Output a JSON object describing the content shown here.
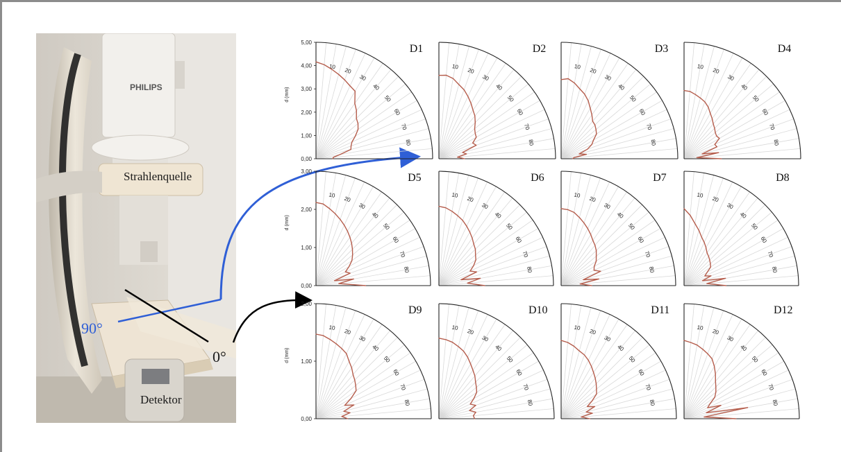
{
  "photo": {
    "brand_text": "PHILIPS",
    "source_label": "Strahlenquelle",
    "detector_label": "Detektor",
    "angle_90_label": "90°",
    "angle_0_label": "0°",
    "colors": {
      "blue": "#2f5fd6",
      "black": "#000000",
      "curve": "#b55d4c"
    }
  },
  "chart_data": [
    {
      "type": "line",
      "title": "D1",
      "ylabel": "d (mm)",
      "ylim": [
        0,
        5
      ],
      "yticks": [
        "0,00",
        "1,00",
        "2,00",
        "3,00",
        "4,00",
        "5,00"
      ],
      "angle_ticks": [
        "10",
        "20",
        "30",
        "40",
        "50",
        "60",
        "70",
        "80"
      ],
      "x": [
        0,
        5,
        10,
        15,
        20,
        25,
        30,
        35,
        40,
        45,
        50,
        55,
        60,
        65,
        70,
        75,
        80,
        85,
        90
      ],
      "y": [
        4.16,
        4.05,
        3.9,
        3.75,
        3.6,
        3.45,
        3.35,
        2.9,
        2.7,
        2.45,
        2.35,
        2.2,
        1.95,
        1.7,
        1.6,
        1.55,
        1.05,
        0.75,
        0.72
      ]
    },
    {
      "type": "line",
      "title": "D2",
      "ylim": [
        0,
        5
      ],
      "angle_ticks": [
        "10",
        "20",
        "30",
        "40",
        "50",
        "60",
        "70",
        "80"
      ],
      "x": [
        0,
        5,
        10,
        15,
        20,
        25,
        30,
        35,
        40,
        45,
        50,
        55,
        60,
        65,
        70,
        75,
        80,
        85,
        90
      ],
      "y": [
        3.58,
        3.6,
        3.5,
        3.3,
        3.15,
        2.95,
        2.75,
        2.55,
        2.4,
        2.2,
        2.0,
        1.9,
        1.85,
        1.6,
        1.7,
        1.05,
        1.2,
        0.8,
        1.1
      ]
    },
    {
      "type": "line",
      "title": "D3",
      "ylim": [
        0,
        5
      ],
      "angle_ticks": [
        "10",
        "20",
        "30",
        "40",
        "50",
        "60",
        "70",
        "80"
      ],
      "x": [
        0,
        5,
        10,
        15,
        20,
        25,
        30,
        35,
        40,
        45,
        50,
        55,
        60,
        65,
        70,
        75,
        80,
        85,
        90
      ],
      "y": [
        3.4,
        3.45,
        3.3,
        3.1,
        2.95,
        2.75,
        2.5,
        2.3,
        2.1,
        2.05,
        1.95,
        1.85,
        1.6,
        1.45,
        1.2,
        0.8,
        1.1,
        0.55,
        0.5
      ]
    },
    {
      "type": "line",
      "title": "D4",
      "ylim": [
        0,
        5
      ],
      "angle_ticks": [
        "10",
        "20",
        "30",
        "40",
        "50",
        "60",
        "70",
        "80"
      ],
      "x": [
        0,
        5,
        10,
        15,
        20,
        25,
        30,
        35,
        40,
        45,
        50,
        55,
        60,
        65,
        70,
        75,
        80,
        85,
        90
      ],
      "y": [
        2.93,
        2.9,
        2.8,
        2.7,
        2.6,
        2.45,
        2.25,
        2.1,
        1.95,
        1.85,
        1.75,
        1.7,
        1.75,
        1.45,
        1.5,
        0.8,
        1.5,
        0.55,
        1.6
      ]
    },
    {
      "type": "line",
      "title": "D5",
      "ylabel": "d (mm)",
      "ylim": [
        0,
        3
      ],
      "yticks": [
        "0,00",
        "1,00",
        "2,00",
        "3,00"
      ],
      "angle_ticks": [
        "10",
        "20",
        "30",
        "40",
        "50",
        "60",
        "70",
        "80"
      ],
      "x": [
        0,
        5,
        10,
        15,
        20,
        25,
        30,
        35,
        40,
        45,
        50,
        55,
        60,
        65,
        70,
        75,
        80,
        85,
        90
      ],
      "y": [
        2.18,
        2.15,
        2.05,
        1.95,
        1.85,
        1.75,
        1.65,
        1.55,
        1.45,
        1.35,
        1.25,
        1.15,
        1.0,
        0.85,
        0.95,
        0.5,
        1.0,
        0.6,
        1.3
      ]
    },
    {
      "type": "line",
      "title": "D6",
      "ylim": [
        0,
        3
      ],
      "angle_ticks": [
        "10",
        "20",
        "30",
        "40",
        "50",
        "60",
        "70",
        "80"
      ],
      "x": [
        0,
        5,
        10,
        15,
        20,
        25,
        30,
        35,
        40,
        45,
        50,
        55,
        60,
        65,
        70,
        75,
        80,
        85,
        90
      ],
      "y": [
        2.08,
        2.05,
        1.98,
        1.9,
        1.82,
        1.72,
        1.62,
        1.52,
        1.42,
        1.35,
        1.25,
        1.18,
        1.05,
        0.9,
        1.05,
        0.6,
        1.1,
        0.75,
        1.2
      ]
    },
    {
      "type": "line",
      "title": "D7",
      "ylim": [
        0,
        3
      ],
      "angle_ticks": [
        "10",
        "20",
        "30",
        "40",
        "50",
        "60",
        "70",
        "80"
      ],
      "x": [
        0,
        5,
        10,
        15,
        20,
        25,
        30,
        35,
        40,
        45,
        50,
        55,
        60,
        65,
        70,
        75,
        80,
        85,
        90
      ],
      "y": [
        2.02,
        2.0,
        1.95,
        1.85,
        1.75,
        1.65,
        1.55,
        1.45,
        1.38,
        1.3,
        1.2,
        1.12,
        1.0,
        0.95,
        1.1,
        0.6,
        1.0,
        0.5,
        0.8
      ]
    },
    {
      "type": "line",
      "title": "D8",
      "ylim": [
        0,
        3
      ],
      "angle_ticks": [
        "10",
        "20",
        "30",
        "40",
        "50",
        "60",
        "70",
        "80"
      ],
      "x": [
        0,
        5,
        10,
        15,
        20,
        25,
        30,
        35,
        40,
        45,
        50,
        55,
        60,
        65,
        70,
        75,
        80,
        85,
        90
      ],
      "y": [
        2.02,
        1.85,
        1.65,
        1.5,
        1.35,
        1.25,
        1.15,
        1.05,
        1.0,
        0.95,
        0.9,
        0.85,
        0.7,
        0.6,
        0.75,
        0.5,
        1.1,
        0.6,
        1.1
      ]
    },
    {
      "type": "line",
      "title": "D9",
      "ylabel": "d (mm)",
      "ylim": [
        0,
        2
      ],
      "yticks": [
        "0,00",
        "1,00",
        "2,00"
      ],
      "angle_ticks": [
        "10",
        "20",
        "30",
        "40",
        "50",
        "60",
        "70",
        "80"
      ],
      "x": [
        0,
        5,
        10,
        15,
        20,
        25,
        30,
        35,
        40,
        45,
        50,
        55,
        60,
        65,
        70,
        75,
        80,
        85,
        90
      ],
      "y": [
        1.47,
        1.45,
        1.4,
        1.35,
        1.3,
        1.25,
        1.15,
        1.08,
        1.0,
        0.95,
        0.9,
        0.85,
        0.7,
        0.55,
        0.7,
        0.5,
        0.6,
        0.45,
        0.55
      ]
    },
    {
      "type": "line",
      "title": "D10",
      "ylim": [
        0,
        2
      ],
      "angle_ticks": [
        "10",
        "20",
        "30",
        "40",
        "50",
        "60",
        "70",
        "80"
      ],
      "x": [
        0,
        5,
        10,
        15,
        20,
        25,
        30,
        35,
        40,
        45,
        50,
        55,
        60,
        65,
        70,
        75,
        80,
        85,
        90
      ],
      "y": [
        1.4,
        1.38,
        1.35,
        1.3,
        1.25,
        1.18,
        1.1,
        1.03,
        0.97,
        0.9,
        0.85,
        0.8,
        0.7,
        0.6,
        0.68,
        0.55,
        0.65,
        0.6,
        0.62
      ]
    },
    {
      "type": "line",
      "title": "D11",
      "ylim": [
        0,
        2
      ],
      "angle_ticks": [
        "10",
        "20",
        "30",
        "40",
        "50",
        "60",
        "70",
        "80"
      ],
      "x": [
        0,
        5,
        10,
        15,
        20,
        25,
        30,
        35,
        40,
        45,
        50,
        55,
        60,
        65,
        70,
        75,
        80,
        85,
        90
      ],
      "y": [
        1.36,
        1.33,
        1.28,
        1.22,
        1.18,
        1.12,
        1.05,
        0.98,
        0.92,
        0.86,
        0.8,
        0.75,
        0.62,
        0.5,
        0.62,
        0.45,
        0.55,
        0.35,
        0.5
      ]
    },
    {
      "type": "line",
      "title": "D12",
      "ylim": [
        0,
        2
      ],
      "angle_ticks": [
        "10",
        "20",
        "30",
        "40",
        "50",
        "60",
        "70",
        "80"
      ],
      "x": [
        0,
        5,
        10,
        15,
        20,
        25,
        30,
        35,
        40,
        45,
        50,
        55,
        60,
        65,
        70,
        75,
        80,
        85,
        90
      ],
      "y": [
        1.36,
        1.33,
        1.3,
        1.25,
        1.2,
        1.15,
        1.05,
        0.95,
        0.85,
        0.78,
        0.72,
        0.65,
        0.52,
        0.45,
        0.68,
        0.4,
        1.12,
        0.35,
        0.9
      ]
    }
  ]
}
